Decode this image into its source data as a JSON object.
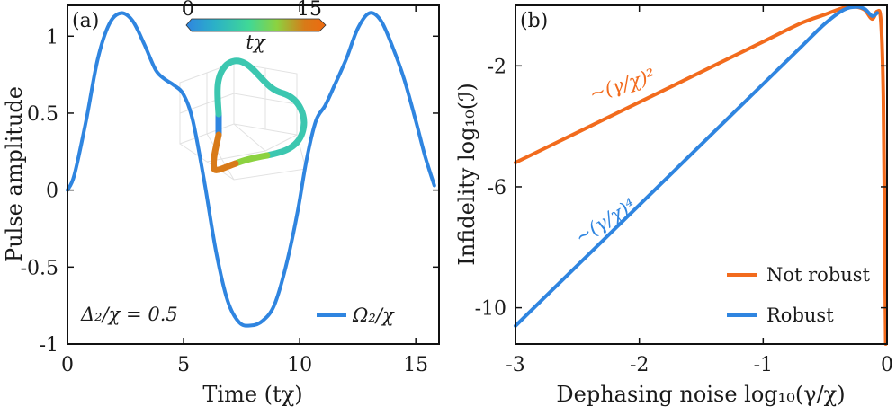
{
  "chart_data": [
    {
      "panel": "(a)",
      "type": "line",
      "xlabel": "Time (tχ)",
      "ylabel": "Pulse amplitude",
      "xlim": [
        0,
        16
      ],
      "ylim": [
        -1,
        1.2
      ],
      "x_ticks": [
        "0",
        "5",
        "10",
        "15"
      ],
      "y_ticks": [
        "-1",
        "-0.5",
        "0",
        "0.5",
        "1"
      ],
      "series": [
        {
          "name": "Ω₂/χ",
          "color": "#2f85e0",
          "x": [
            0,
            0.3,
            0.8,
            1.3,
            1.8,
            2.3,
            2.8,
            3.3,
            3.8,
            4.2,
            4.6,
            5.0,
            5.4,
            5.9,
            6.4,
            6.9,
            7.4,
            7.9,
            8.4,
            8.9,
            9.4,
            9.9,
            10.3,
            10.7,
            11.1,
            11.5,
            12.0,
            12.5,
            13.0,
            13.5,
            14.0,
            14.5,
            15.0,
            15.4,
            15.8
          ],
          "y": [
            0.0,
            0.1,
            0.45,
            0.85,
            1.08,
            1.15,
            1.1,
            0.95,
            0.78,
            0.72,
            0.68,
            0.62,
            0.45,
            0.05,
            -0.4,
            -0.72,
            -0.86,
            -0.88,
            -0.85,
            -0.75,
            -0.5,
            -0.15,
            0.2,
            0.45,
            0.55,
            0.68,
            0.85,
            1.05,
            1.15,
            1.1,
            0.93,
            0.72,
            0.45,
            0.22,
            0.03
          ]
        }
      ],
      "annotation": "Δ₂/χ = 0.5",
      "legend": "bottom-right",
      "inset": {
        "colorbar_label": "tχ",
        "colorbar_min": "0",
        "colorbar_max": "15",
        "colormap": [
          "#2f85e0",
          "#2bb0c8",
          "#40d896",
          "#8cd240",
          "#d87a18",
          "#ee6a10"
        ]
      }
    },
    {
      "panel": "(b)",
      "type": "line",
      "xlabel": "Dephasing noise log₁₀(γ/χ)",
      "ylabel": "Infidelity log₁₀(ℐ)",
      "xlim": [
        -3,
        0
      ],
      "ylim": [
        -11.2,
        0
      ],
      "x_ticks": [
        "-3",
        "-2",
        "-1",
        "0"
      ],
      "y_ticks": [
        "-2",
        "-6",
        "-10"
      ],
      "series": [
        {
          "name": "Not robust",
          "color": "#f26b1d",
          "x": [
            -3.0,
            -2.5,
            -2.0,
            -1.5,
            -1.0,
            -0.7,
            -0.5,
            -0.35,
            -0.25,
            -0.18,
            -0.12,
            -0.08,
            -0.05,
            -0.03,
            -0.02,
            -0.01
          ],
          "y": [
            -5.2,
            -4.2,
            -3.2,
            -2.2,
            -1.2,
            -0.6,
            -0.3,
            -0.08,
            -0.05,
            -0.15,
            -0.45,
            -0.2,
            -0.5,
            -3.0,
            -7.0,
            -11.2
          ]
        },
        {
          "name": "Robust",
          "color": "#2f85e0",
          "x": [
            -3.0,
            -2.5,
            -2.0,
            -1.5,
            -1.0,
            -0.7,
            -0.5,
            -0.35,
            -0.25,
            -0.18,
            -0.12,
            -0.08
          ],
          "y": [
            -10.6,
            -8.6,
            -6.6,
            -4.6,
            -2.6,
            -1.4,
            -0.6,
            -0.15,
            -0.05,
            -0.12,
            -0.35,
            -0.25
          ]
        }
      ],
      "annotations": [
        {
          "text": "~(γ/χ)²",
          "color": "#f26b1d"
        },
        {
          "text": "~(γ/χ)⁴",
          "color": "#2f85e0"
        }
      ],
      "legend": "bottom-right"
    }
  ]
}
